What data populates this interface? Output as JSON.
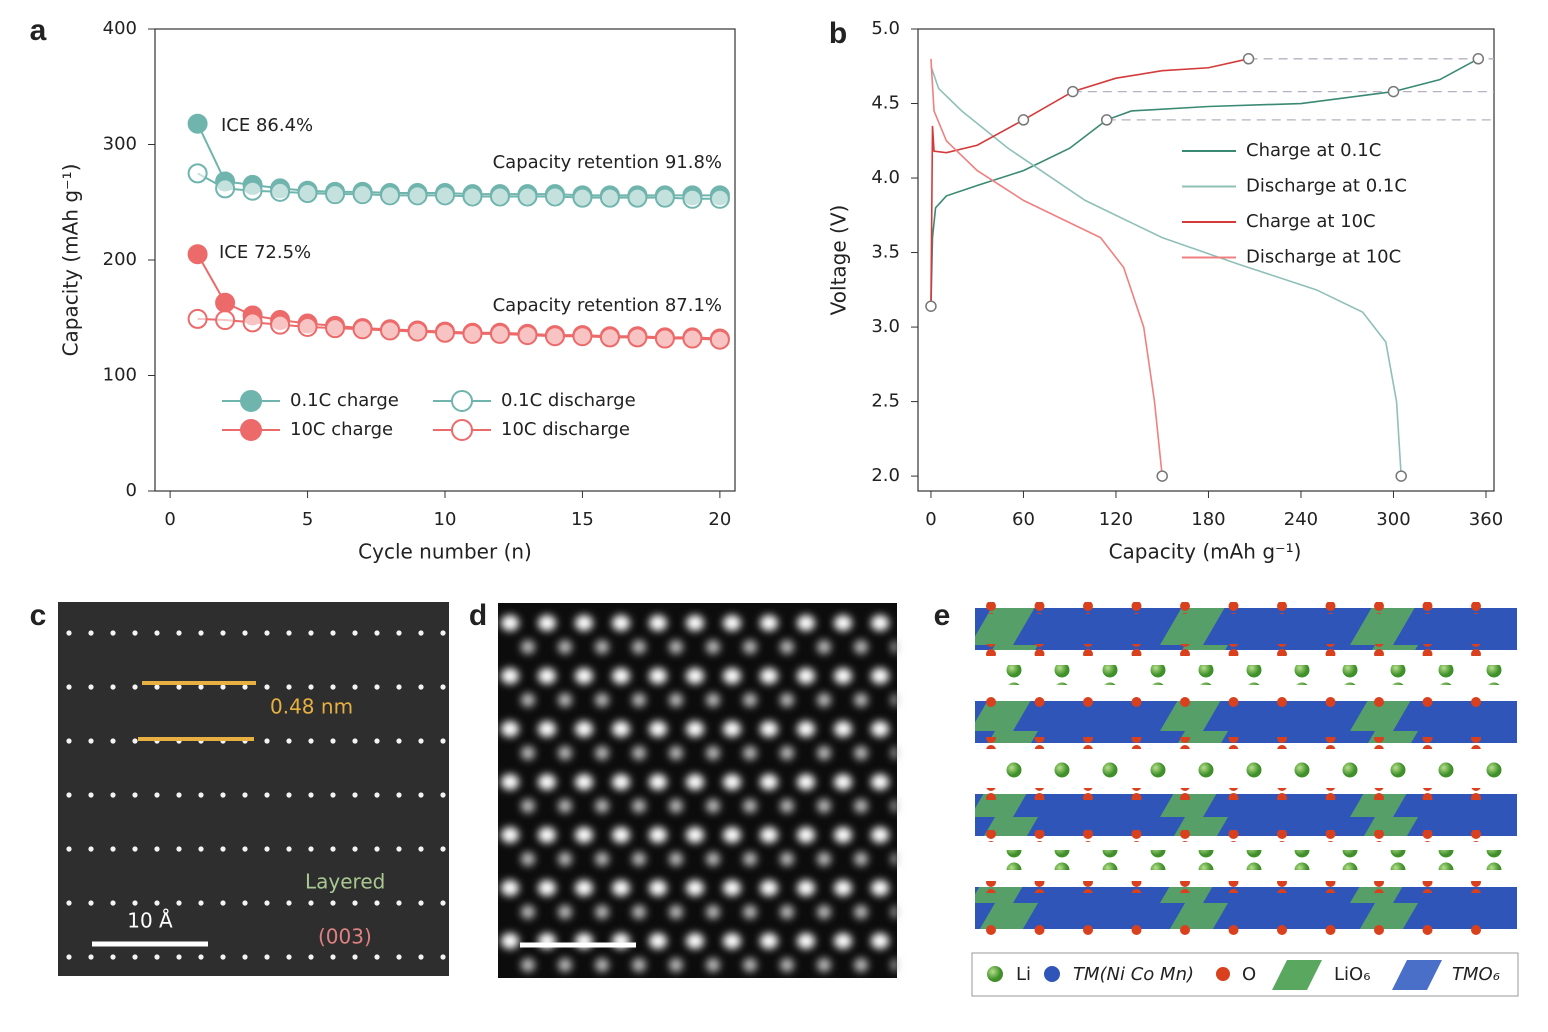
{
  "chart_data": [
    {
      "type": "line",
      "panel": "a",
      "x_label": "Cycle number (n)",
      "y_label": "Capacity (mAh g⁻¹)",
      "x": [
        1,
        2,
        3,
        4,
        5,
        6,
        7,
        8,
        9,
        10,
        11,
        12,
        13,
        14,
        15,
        16,
        17,
        18,
        19,
        20
      ],
      "series": [
        {
          "name": "0.1C charge",
          "color": "#6fb5ad",
          "marker": "filled",
          "values": [
            318,
            268,
            265,
            262,
            260,
            259,
            259,
            258,
            258,
            258,
            257,
            257,
            257,
            257,
            256,
            256,
            256,
            256,
            256,
            256
          ]
        },
        {
          "name": "0.1C discharge",
          "color": "#6fb5ad",
          "marker": "open",
          "values": [
            275,
            262,
            260,
            259,
            258,
            257,
            257,
            256,
            256,
            256,
            255,
            255,
            255,
            255,
            254,
            254,
            254,
            254,
            253,
            253
          ]
        },
        {
          "name": "10C charge",
          "color": "#ec6a6a",
          "marker": "filled",
          "values": [
            205,
            163,
            152,
            148,
            145,
            143,
            141,
            140,
            139,
            138,
            137,
            137,
            136,
            135,
            135,
            134,
            134,
            133,
            133,
            132
          ]
        },
        {
          "name": "10C discharge",
          "color": "#ec6a6a",
          "marker": "open",
          "values": [
            149,
            148,
            146,
            144,
            142,
            141,
            140,
            139,
            138,
            137,
            136,
            136,
            135,
            134,
            134,
            133,
            133,
            132,
            132,
            131
          ]
        }
      ],
      "annotations": [
        "ICE 86.4%",
        "ICE 72.5%",
        "Capacity retention 91.8%",
        "Capacity retention 87.1%"
      ],
      "xlim": [
        -0.55,
        20.55
      ],
      "xticks": [
        0,
        5,
        10,
        15,
        20
      ],
      "ylim": [
        0,
        400
      ],
      "yticks": [
        0,
        100,
        200,
        300,
        400
      ]
    },
    {
      "type": "line",
      "panel": "b",
      "x_label": "Capacity (mAh g⁻¹)",
      "y_label": "Voltage (V)",
      "series": [
        {
          "name": "Charge at 0.1C",
          "color": "#3a8a73",
          "x": [
            0,
            1,
            3,
            10,
            30,
            60,
            90,
            114,
            130,
            180,
            240,
            300,
            330,
            355
          ],
          "values": [
            3.14,
            3.6,
            3.8,
            3.88,
            3.95,
            4.05,
            4.2,
            4.39,
            4.45,
            4.48,
            4.5,
            4.58,
            4.66,
            4.8
          ]
        },
        {
          "name": "Discharge at 0.1C",
          "color": "#8fc0b8",
          "x": [
            0,
            5,
            20,
            50,
            100,
            150,
            200,
            250,
            280,
            295,
            302,
            305
          ],
          "values": [
            4.75,
            4.6,
            4.45,
            4.2,
            3.85,
            3.6,
            3.42,
            3.25,
            3.1,
            2.9,
            2.5,
            2.0
          ]
        },
        {
          "name": "Charge at 10C",
          "color": "#d43a3a",
          "x": [
            0,
            1,
            2,
            10,
            30,
            60,
            92,
            120,
            150,
            180,
            206
          ],
          "values": [
            3.14,
            4.35,
            4.18,
            4.17,
            4.22,
            4.39,
            4.58,
            4.67,
            4.72,
            4.74,
            4.8
          ]
        },
        {
          "name": "Discharge at 10C",
          "color": "#f08080",
          "x": [
            0,
            2,
            10,
            30,
            60,
            90,
            110,
            125,
            138,
            145,
            150
          ],
          "values": [
            4.8,
            4.45,
            4.25,
            4.05,
            3.85,
            3.7,
            3.6,
            3.4,
            3.0,
            2.5,
            2.0
          ]
        }
      ],
      "markers": {
        "x": [
          0,
          60,
          92,
          114,
          206,
          300,
          355,
          150,
          305
        ],
        "y": [
          3.14,
          4.39,
          4.58,
          4.39,
          4.8,
          4.58,
          4.8,
          2.0,
          2.0
        ]
      },
      "hlines": [
        {
          "y": 4.39,
          "x0": 114
        },
        {
          "y": 4.58,
          "x0": 92
        },
        {
          "y": 4.8,
          "x0": 206
        }
      ],
      "xlim": [
        -8.4,
        365.2
      ],
      "xticks": [
        0,
        60,
        120,
        180,
        240,
        300,
        360
      ],
      "ylim": [
        1.9,
        5.0
      ],
      "yticks": [
        {
          "value": 2,
          "label": "2.0"
        },
        {
          "value": 2.5,
          "label": "2.5"
        },
        {
          "value": 3,
          "label": "3.0"
        },
        {
          "value": 3.5,
          "label": "3.5"
        },
        {
          "value": 4,
          "label": "4.0"
        },
        {
          "value": 4.5,
          "label": "4.5"
        },
        {
          "value": 5,
          "label": "5.0"
        }
      ]
    }
  ],
  "panels": {
    "c": {
      "label": "c",
      "spacing": "0.48 nm",
      "phase": "Layered",
      "plane": "(003)",
      "scale": "10 Å"
    },
    "d": {
      "label": "d"
    },
    "e": {
      "label": "e",
      "legend": [
        "Li",
        "TM(Ni Co Mn)",
        "O",
        "LiO₆",
        "TMO₆"
      ]
    }
  }
}
